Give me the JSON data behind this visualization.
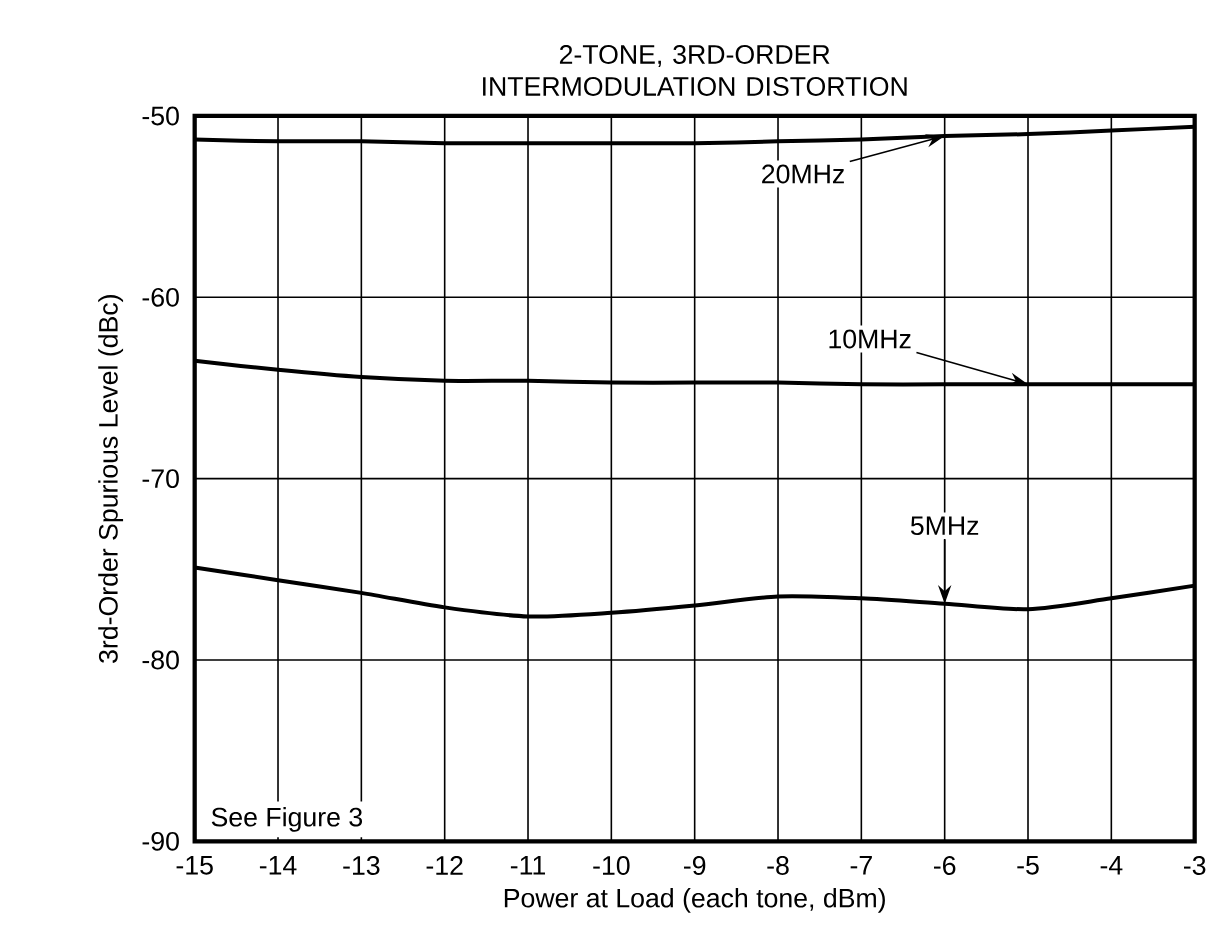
{
  "chart_data": {
    "type": "line",
    "title": "2-TONE, 3RD-ORDER INTERMODULATION DISTORTION",
    "xlabel": "Power at Load (each tone, dBm)",
    "ylabel": "3rd-Order Spurious Level (dBc)",
    "x": [
      -15,
      -14,
      -13,
      -12,
      -11,
      -10,
      -9,
      -8,
      -7,
      -6,
      -5,
      -4,
      -3
    ],
    "series": [
      {
        "name": "20MHz",
        "color": "#000000",
        "values": [
          -51.3,
          -51.4,
          -51.4,
          -51.5,
          -51.5,
          -51.5,
          -51.5,
          -51.4,
          -51.3,
          -51.1,
          -51.0,
          -50.8,
          -50.6
        ]
      },
      {
        "name": "10MHz",
        "color": "#000000",
        "values": [
          -63.5,
          -64.0,
          -64.4,
          -64.6,
          -64.6,
          -64.7,
          -64.7,
          -64.7,
          -64.8,
          -64.8,
          -64.8,
          -64.8,
          -64.8
        ]
      },
      {
        "name": "5MHz",
        "color": "#000000",
        "values": [
          -74.9,
          -75.6,
          -76.3,
          -77.1,
          -77.6,
          -77.4,
          -77.0,
          -76.5,
          -76.6,
          -76.9,
          -77.2,
          -76.6,
          -75.9
        ]
      }
    ],
    "xlim": [
      -15,
      -3
    ],
    "ylim": [
      -90,
      -50
    ],
    "xticks": [
      -15,
      -14,
      -13,
      -12,
      -11,
      -10,
      -9,
      -8,
      -7,
      -6,
      -5,
      -4,
      -3
    ],
    "yticks": [
      -90,
      -80,
      -70,
      -60,
      -50
    ],
    "grid": true,
    "legend": false,
    "marker": "none",
    "line_style": "solid",
    "annotations": [
      "See Figure 3"
    ]
  }
}
